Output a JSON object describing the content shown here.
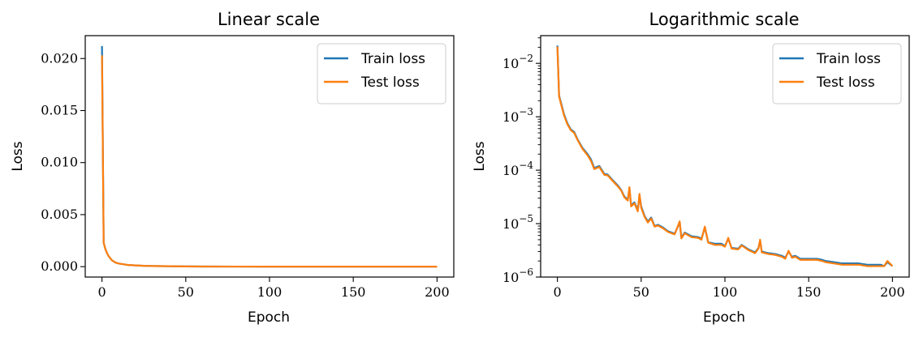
{
  "chart_data": [
    {
      "type": "line",
      "title": "Linear scale",
      "xlabel": "Epoch",
      "ylabel": "Loss",
      "yscale": "linear",
      "xlim": [
        -10,
        210
      ],
      "ylim": [
        -0.001,
        0.0222
      ],
      "xticks": [
        0,
        50,
        100,
        150,
        200
      ],
      "xtick_labels": [
        "0",
        "50",
        "100",
        "150",
        "200"
      ],
      "yticks": [
        0,
        0.005,
        0.01,
        0.015,
        0.02
      ],
      "ytick_labels": [
        "0.000",
        "0.005",
        "0.010",
        "0.015",
        "0.020"
      ],
      "grid": false,
      "legend": "top-right",
      "series": [
        {
          "name": "Train loss",
          "color": "#1f77b4",
          "x": [
            0,
            1,
            2,
            3,
            4,
            5,
            6,
            8,
            10,
            12,
            15,
            20,
            25,
            30,
            40,
            50,
            60,
            80,
            100,
            120,
            150,
            180,
            200
          ],
          "y": [
            0.0212,
            0.0023,
            0.0017,
            0.0013,
            0.001,
            0.0008,
            0.0006,
            0.0004,
            0.0003,
            0.00025,
            0.00017,
            0.00012,
            8e-05,
            6e-05,
            4e-05,
            2e-05,
            1.2e-05,
            7e-06,
            4e-06,
            3e-06,
            2e-06,
            1.8e-06,
            1.6e-06
          ]
        },
        {
          "name": "Test loss",
          "color": "#ff7f0e",
          "x": [
            0,
            1,
            2,
            3,
            4,
            5,
            6,
            8,
            10,
            12,
            15,
            20,
            25,
            30,
            40,
            50,
            60,
            80,
            100,
            120,
            150,
            180,
            200
          ],
          "y": [
            0.0203,
            0.0023,
            0.0017,
            0.0013,
            0.001,
            0.0008,
            0.0006,
            0.0004,
            0.0003,
            0.00025,
            0.00017,
            0.00012,
            8e-05,
            6e-05,
            4e-05,
            2e-05,
            1.2e-05,
            7e-06,
            4e-06,
            3e-06,
            2e-06,
            1.8e-06,
            1.6e-06
          ]
        }
      ]
    },
    {
      "type": "line",
      "title": "Logarithmic scale",
      "xlabel": "Epoch",
      "ylabel": "Loss",
      "yscale": "log",
      "xlim": [
        -10,
        210
      ],
      "ylim": [
        1e-06,
        0.033
      ],
      "xticks": [
        0,
        50,
        100,
        150,
        200
      ],
      "xtick_labels": [
        "0",
        "50",
        "100",
        "150",
        "200"
      ],
      "yticks": [
        1e-06,
        1e-05,
        0.0001,
        0.001,
        0.01
      ],
      "ytick_bases": [
        "10",
        "10",
        "10",
        "10",
        "10"
      ],
      "ytick_exponents": [
        "−6",
        "−5",
        "−4",
        "−3",
        "−2"
      ],
      "grid": false,
      "legend": "top-right",
      "series": [
        {
          "name": "Train loss",
          "color": "#1f77b4",
          "x": [
            0,
            1,
            2,
            4,
            6,
            8,
            10,
            12,
            15,
            18,
            20,
            22,
            25,
            28,
            30,
            33,
            36,
            38,
            40,
            42,
            43,
            44,
            46,
            48,
            49,
            50,
            52,
            54,
            56,
            58,
            60,
            63,
            66,
            70,
            73,
            74,
            76,
            80,
            84,
            86,
            88,
            90,
            94,
            98,
            100,
            102,
            104,
            108,
            110,
            114,
            118,
            120,
            121,
            122,
            126,
            130,
            134,
            136,
            138,
            140,
            142,
            145,
            150,
            155,
            158,
            160,
            165,
            170,
            175,
            180,
            185,
            190,
            193,
            195,
            197,
            200
          ],
          "y": [
            0.0215,
            0.0025,
            0.0019,
            0.0011,
            0.00075,
            0.00058,
            0.00052,
            0.00038,
            0.00026,
            0.0002,
            0.00016,
            0.00011,
            0.00012,
            8.5e-05,
            8.3e-05,
            6.5e-05,
            5.2e-05,
            4.3e-05,
            3.2e-05,
            2.8e-05,
            4.5e-05,
            2.2e-05,
            2.5e-05,
            1.8e-05,
            3.4e-05,
            2.1e-05,
            1.4e-05,
            1.1e-05,
            1.3e-05,
            9e-06,
            9.5e-06,
            8.5e-06,
            7.2e-06,
            6.5e-06,
            1.05e-05,
            5.5e-06,
            6.8e-06,
            5.8e-06,
            5.6e-06,
            5.2e-06,
            8.5e-06,
            4.5e-06,
            4.2e-06,
            4.2e-06,
            3.8e-06,
            5.2e-06,
            3.5e-06,
            3.4e-06,
            4e-06,
            3.3e-06,
            2.9e-06,
            3.5e-06,
            4.8e-06,
            3e-06,
            2.8e-06,
            2.7e-06,
            2.5e-06,
            2.3e-06,
            3e-06,
            2.4e-06,
            2.5e-06,
            2.2e-06,
            2.2e-06,
            2.2e-06,
            2.1e-06,
            2e-06,
            1.9e-06,
            1.8e-06,
            1.8e-06,
            1.8e-06,
            1.7e-06,
            1.7e-06,
            1.7e-06,
            1.6e-06,
            1.9e-06,
            1.6e-06
          ]
        },
        {
          "name": "Test loss",
          "color": "#ff7f0e",
          "x": [
            0,
            1,
            2,
            4,
            6,
            8,
            10,
            12,
            15,
            18,
            20,
            22,
            25,
            28,
            30,
            33,
            36,
            38,
            40,
            42,
            43,
            44,
            46,
            48,
            49,
            50,
            52,
            54,
            56,
            58,
            60,
            63,
            66,
            70,
            73,
            74,
            76,
            80,
            84,
            86,
            88,
            90,
            94,
            98,
            100,
            102,
            104,
            108,
            110,
            114,
            118,
            120,
            121,
            122,
            126,
            130,
            134,
            136,
            138,
            140,
            142,
            145,
            150,
            155,
            158,
            160,
            165,
            170,
            175,
            180,
            185,
            190,
            193,
            195,
            197,
            200
          ],
          "y": [
            0.0205,
            0.0024,
            0.0018,
            0.00105,
            0.00072,
            0.00056,
            0.0005,
            0.00037,
            0.00025,
            0.00019,
            0.00015,
            0.000105,
            0.000115,
            8.2e-05,
            8e-05,
            6.3e-05,
            5e-05,
            4.2e-05,
            3.1e-05,
            2.7e-05,
            4.8e-05,
            2.1e-05,
            2.4e-05,
            1.7e-05,
            3.6e-05,
            2e-05,
            1.35e-05,
            1.05e-05,
            1.25e-05,
            8.8e-06,
            9.2e-06,
            8.2e-06,
            7e-06,
            6.3e-06,
            1.1e-05,
            5.3e-06,
            6.6e-06,
            5.6e-06,
            5.4e-06,
            5e-06,
            8.8e-06,
            4.4e-06,
            4e-06,
            4e-06,
            3.7e-06,
            5.4e-06,
            3.4e-06,
            3.3e-06,
            3.9e-06,
            3.2e-06,
            2.8e-06,
            3.4e-06,
            5e-06,
            2.9e-06,
            2.7e-06,
            2.6e-06,
            2.4e-06,
            2.2e-06,
            3.1e-06,
            2.3e-06,
            2.4e-06,
            2.1e-06,
            2.1e-06,
            2.1e-06,
            2e-06,
            1.9e-06,
            1.8e-06,
            1.7e-06,
            1.7e-06,
            1.7e-06,
            1.6e-06,
            1.6e-06,
            1.6e-06,
            1.6e-06,
            2e-06,
            1.6e-06
          ]
        }
      ]
    }
  ]
}
